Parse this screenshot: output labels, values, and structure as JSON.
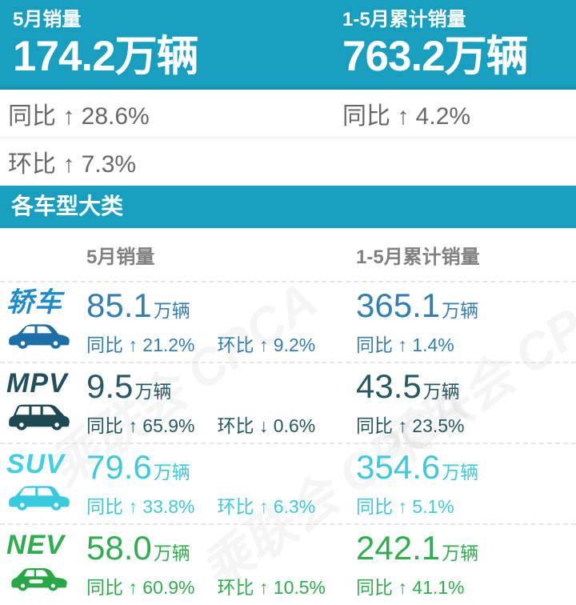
{
  "colors": {
    "accent": "#189FBF",
    "accent_dark": "#1591AF",
    "text_gray": "#686868",
    "header_gray": "#808080"
  },
  "banner": {
    "left_label": "5月销量",
    "left_value": "174.2",
    "left_unit": "万辆",
    "right_label": "1-5月累计销量",
    "right_value": "763.2",
    "right_unit": "万辆"
  },
  "stats": {
    "row1_left": "同比 ↑ 28.6%",
    "row1_right": "同比 ↑ 4.2%",
    "row2_left": "环比 ↑ 7.3%"
  },
  "section_title": "各车型大类",
  "table": {
    "col1_header": "5月销量",
    "col2_header": "1-5月累计销量",
    "rows": [
      {
        "name": "轿车",
        "icon": "sedan-car-icon",
        "label_color": "#1E8CCB",
        "icon_color": "#1D6FA8",
        "value_color": "#337FB0",
        "may_value": "85.1",
        "may_unit": "万辆",
        "may_yoy": "同比 ↑ 21.2%",
        "may_mom": "环比 ↑ 9.2%",
        "cum_value": "365.1",
        "cum_unit": "万辆",
        "cum_yoy": "同比 ↑ 1.4%"
      },
      {
        "name": "MPV",
        "icon": "mpv-car-icon",
        "label_color": "#1F505C",
        "icon_color": "#1C4952",
        "value_color": "#275962",
        "may_value": "9.5",
        "may_unit": "万辆",
        "may_yoy": "同比 ↑ 65.9%",
        "may_mom": "环比 ↓ 0.6%",
        "cum_value": "43.5",
        "cum_unit": "万辆",
        "cum_yoy": "同比 ↑ 23.5%"
      },
      {
        "name": "SUV",
        "icon": "suv-car-icon",
        "label_color": "#41CFE2",
        "icon_color": "#38CBDD",
        "value_color": "#3FC9DA",
        "may_value": "79.6",
        "may_unit": "万辆",
        "may_yoy": "同比 ↑ 33.8%",
        "may_mom": "环比 ↑ 6.3%",
        "cum_value": "354.6",
        "cum_unit": "万辆",
        "cum_yoy": "同比 ↑ 5.1%"
      },
      {
        "name": "NEV",
        "icon": "nev-car-icon",
        "label_color": "#2FAE50",
        "icon_color": "#27A845",
        "value_color": "#2FAE50",
        "may_value": "58.0",
        "may_unit": "万辆",
        "may_yoy": "同比 ↑ 60.9%",
        "may_mom": "环比 ↑ 10.5%",
        "cum_value": "242.1",
        "cum_unit": "万辆",
        "cum_yoy": "同比 ↑ 41.1%"
      }
    ]
  },
  "watermark": {
    "text": "乘联会 CPCA"
  },
  "chart_data": {
    "type": "table",
    "title": "各车型大类",
    "summary": {
      "5月销量_万辆": 174.2,
      "5月同比_pct": 28.6,
      "5月环比_pct": 7.3,
      "1-5月累计销量_万辆": 763.2,
      "累计同比_pct": 4.2
    },
    "columns": [
      "车型",
      "5月销量(万辆)",
      "5月同比%",
      "5月环比%",
      "1-5月累计销量(万辆)",
      "累计同比%"
    ],
    "rows": [
      [
        "轿车",
        85.1,
        21.2,
        9.2,
        365.1,
        1.4
      ],
      [
        "MPV",
        9.5,
        65.9,
        -0.6,
        43.5,
        23.5
      ],
      [
        "SUV",
        79.6,
        33.8,
        6.3,
        354.6,
        5.1
      ],
      [
        "NEV",
        58.0,
        60.9,
        10.5,
        242.1,
        41.1
      ]
    ]
  }
}
